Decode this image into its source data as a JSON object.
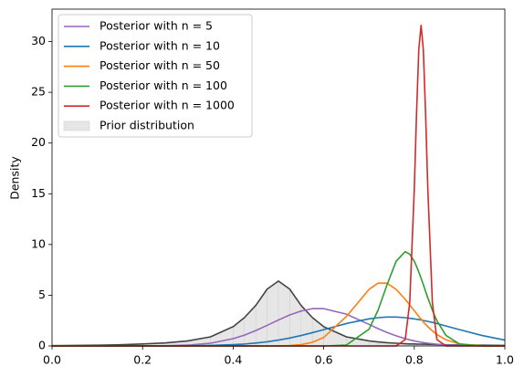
{
  "chart_data": {
    "type": "line",
    "ylabel": "Density",
    "x": [
      0,
      0.05,
      0.1,
      0.15,
      0.2,
      0.25,
      0.3,
      0.35,
      0.4,
      0.425,
      0.45,
      0.475,
      0.5,
      0.525,
      0.55,
      0.575,
      0.6,
      0.65,
      0.7,
      0.72,
      0.74,
      0.76,
      0.78,
      0.79,
      0.8,
      0.805,
      0.81,
      0.815,
      0.82,
      0.825,
      0.83,
      0.84,
      0.85,
      0.87,
      0.9,
      0.95,
      1.0
    ],
    "series": [
      {
        "name": "Posterior with n = 5",
        "color": "#9467bd",
        "values": [
          0,
          0,
          0,
          0,
          0.004,
          0.02,
          0.08,
          0.27,
          0.72,
          1.07,
          1.52,
          2.03,
          2.56,
          3.06,
          3.44,
          3.68,
          3.68,
          3.14,
          2.13,
          1.71,
          1.33,
          1.0,
          0.72,
          0.6,
          0.5,
          0.45,
          0.41,
          0.37,
          0.33,
          0.3,
          0.27,
          0.22,
          0.17,
          0.1,
          0.05,
          0.01,
          0
        ]
      },
      {
        "name": "Posterior with n = 10",
        "color": "#1f77b4",
        "values": [
          0,
          0,
          0,
          0,
          0.001,
          0.005,
          0.02,
          0.05,
          0.13,
          0.19,
          0.29,
          0.41,
          0.58,
          0.78,
          1.03,
          1.31,
          1.61,
          2.21,
          2.67,
          2.79,
          2.85,
          2.85,
          2.79,
          2.73,
          2.67,
          2.63,
          2.6,
          2.56,
          2.51,
          2.47,
          2.42,
          2.32,
          2.21,
          1.97,
          1.61,
          1.03,
          0.58
        ]
      },
      {
        "name": "Posterior with n = 50",
        "color": "#ff7f0e",
        "values": [
          0,
          0,
          0,
          0,
          0,
          0,
          0,
          0,
          0,
          0,
          0,
          0,
          0.01,
          0.04,
          0.13,
          0.36,
          0.84,
          2.9,
          5.57,
          6.19,
          6.19,
          5.57,
          4.6,
          4.05,
          3.48,
          3.2,
          2.9,
          2.65,
          2.37,
          2.12,
          1.9,
          1.48,
          1.13,
          0.61,
          0.2,
          0.02,
          0
        ]
      },
      {
        "name": "Posterior with n = 100",
        "color": "#2ca02c",
        "values": [
          0,
          0,
          0,
          0,
          0,
          0,
          0,
          0,
          0,
          0,
          0,
          0,
          0,
          0,
          0,
          0,
          0,
          0.09,
          1.65,
          3.52,
          6.05,
          8.35,
          9.3,
          9.05,
          8.35,
          7.85,
          7.29,
          6.68,
          6.05,
          5.38,
          4.73,
          3.52,
          2.48,
          1.04,
          0.19,
          0,
          0
        ]
      },
      {
        "name": "Posterior with n = 1000",
        "color": "#d62728",
        "values": [
          0,
          0,
          0,
          0,
          0,
          0,
          0,
          0,
          0,
          0,
          0,
          0,
          0,
          0,
          0,
          0,
          0,
          0,
          0,
          0,
          0,
          0,
          0.63,
          4.28,
          15.4,
          22.9,
          29.2,
          31.6,
          29.2,
          22.9,
          15.4,
          4.28,
          0.63,
          0,
          0,
          0,
          0
        ]
      },
      {
        "name": "Prior distribution",
        "color": "#444444",
        "fill": "#e6e6e6",
        "values": [
          0.03,
          0.05,
          0.07,
          0.12,
          0.2,
          0.3,
          0.5,
          0.9,
          1.9,
          2.8,
          4.0,
          5.6,
          6.4,
          5.6,
          4.0,
          2.8,
          1.9,
          0.9,
          0.5,
          0.4,
          0.32,
          0.27,
          0.22,
          0.2,
          0.2,
          0.19,
          0.18,
          0.18,
          0.17,
          0.17,
          0.16,
          0.15,
          0.14,
          0.12,
          0.1,
          0.07,
          0.05
        ]
      }
    ],
    "xlim": [
      0,
      1
    ],
    "xticks": [
      {
        "value": 0,
        "label": "0.0"
      },
      0.2,
      0.4,
      0.6,
      0.8,
      {
        "value": 1,
        "label": "1.0"
      }
    ],
    "ylim": [
      0,
      33.2
    ],
    "yticks": [
      0,
      5,
      10,
      15,
      20,
      25,
      30
    ],
    "legend": "upper-left"
  }
}
